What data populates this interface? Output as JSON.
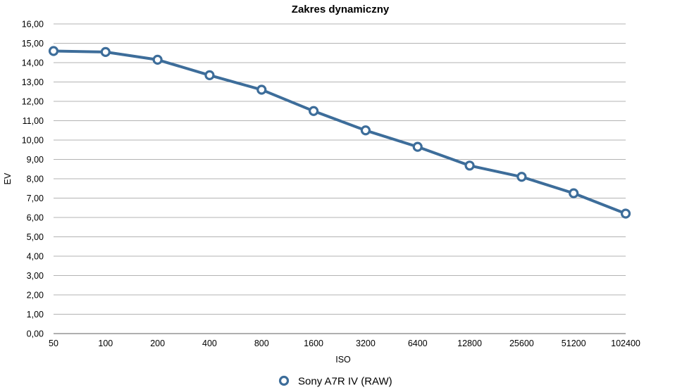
{
  "chart_data": {
    "type": "line",
    "title": "Zakres dynamiczny",
    "xlabel": "ISO",
    "ylabel": "EV",
    "categories": [
      "50",
      "100",
      "200",
      "400",
      "800",
      "1600",
      "3200",
      "6400",
      "12800",
      "25600",
      "51200",
      "102400"
    ],
    "y_ticks": [
      "0,00",
      "1,00",
      "2,00",
      "3,00",
      "4,00",
      "5,00",
      "6,00",
      "7,00",
      "8,00",
      "9,00",
      "10,00",
      "11,00",
      "12,00",
      "13,00",
      "14,00",
      "15,00",
      "16,00"
    ],
    "ylim": [
      0,
      16
    ],
    "grid": "horizontal",
    "legend_position": "bottom-center",
    "series": [
      {
        "name": "Sony A7R IV (RAW)",
        "color": "#3d6d9a",
        "values": [
          14.6,
          14.55,
          14.15,
          13.35,
          12.6,
          11.5,
          10.5,
          9.65,
          8.68,
          8.1,
          7.25,
          6.2
        ]
      }
    ]
  }
}
